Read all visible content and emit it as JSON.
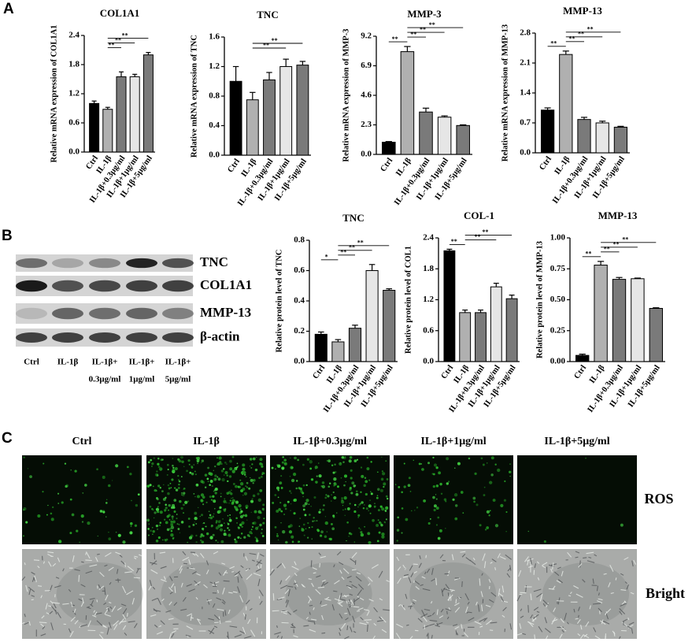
{
  "panels": [
    "A",
    "B",
    "C"
  ],
  "chart_data": [
    {
      "type": "bar",
      "title": "COL1A1",
      "ylabel": "Relative mRNA expression of COL1A1",
      "categories": [
        "Ctrl",
        "IL-1β",
        "IL-1β+0.3μg/ml",
        "IL-1β+1μg/ml",
        "IL-1β+5μg/ml"
      ],
      "values": [
        1.0,
        0.88,
        1.55,
        1.55,
        2.0
      ],
      "errors": [
        0.05,
        0.04,
        0.1,
        0.05,
        0.05
      ],
      "colors": [
        "#000000",
        "#b0b0b0",
        "#7a7a7a",
        "#e6e6e6",
        "#7a7a7a"
      ],
      "ylim": [
        0,
        2.4
      ],
      "yticks": [
        {
          "value": 0,
          "label": "0.0"
        },
        0.6,
        1.2,
        1.8,
        2.4
      ],
      "significance": [
        {
          "from": 1,
          "to": 2,
          "label": "**"
        },
        {
          "from": 1,
          "to": 3,
          "label": "**"
        },
        {
          "from": 1,
          "to": 4,
          "label": "**"
        }
      ]
    },
    {
      "type": "bar",
      "title": "TNC",
      "ylabel": "Relative mRNA expression of  TNC",
      "categories": [
        "Ctrl",
        "IL-1β",
        "IL-1β+0.3μg/ml",
        "IL-1β+1μg/ml",
        "IL-1β+5μg/ml"
      ],
      "values": [
        1.0,
        0.75,
        1.02,
        1.2,
        1.22
      ],
      "errors": [
        0.2,
        0.1,
        0.1,
        0.1,
        0.05
      ],
      "colors": [
        "#000000",
        "#b0b0b0",
        "#7a7a7a",
        "#e6e6e6",
        "#7a7a7a"
      ],
      "ylim": [
        0,
        1.6
      ],
      "yticks": [
        {
          "value": 0,
          "label": "0.0"
        },
        0.4,
        0.8,
        1.2,
        1.6
      ],
      "significance": [
        {
          "from": 1,
          "to": 3,
          "label": "**"
        },
        {
          "from": 1,
          "to": 4,
          "label": "**"
        }
      ]
    },
    {
      "type": "bar",
      "title": "MMP-3",
      "ylabel": "Relative mRNA expression of  MMP-3",
      "categories": [
        "Ctrl",
        "IL-1β",
        "IL-1β+0.3μg/ml",
        "IL-1β+1μg/ml",
        "IL-1β+5μg/ml"
      ],
      "values": [
        0.95,
        8.0,
        3.3,
        2.9,
        2.25
      ],
      "errors": [
        0.05,
        0.4,
        0.3,
        0.1,
        0.05
      ],
      "colors": [
        "#000000",
        "#b0b0b0",
        "#7a7a7a",
        "#e6e6e6",
        "#7a7a7a"
      ],
      "ylim": [
        0,
        9.2
      ],
      "yticks": [
        {
          "value": 0,
          "label": "0.0"
        },
        2.3,
        4.6,
        6.9,
        9.2
      ],
      "significance": [
        {
          "from": 0,
          "to": 1,
          "label": "**"
        },
        {
          "from": 1,
          "to": 2,
          "label": "**"
        },
        {
          "from": 1,
          "to": 3,
          "label": "**"
        },
        {
          "from": 1,
          "to": 4,
          "label": "**"
        }
      ]
    },
    {
      "type": "bar",
      "title": "MMP-13",
      "ylabel": "Relative mRNA expression of  MMP-13",
      "categories": [
        "Ctrl",
        "IL-1β",
        "IL-1β+0.3μg/ml",
        "IL-1β+1μg/ml",
        "IL-1β+5μg/ml"
      ],
      "values": [
        1.0,
        2.3,
        0.78,
        0.7,
        0.6
      ],
      "errors": [
        0.05,
        0.08,
        0.05,
        0.04,
        0.02
      ],
      "colors": [
        "#000000",
        "#b0b0b0",
        "#7a7a7a",
        "#e6e6e6",
        "#7a7a7a"
      ],
      "ylim": [
        0,
        2.8
      ],
      "yticks": [
        {
          "value": 0,
          "label": "0.0"
        },
        0.7,
        1.4,
        2.1,
        2.8
      ],
      "significance": [
        {
          "from": 0,
          "to": 1,
          "label": "**"
        },
        {
          "from": 1,
          "to": 2,
          "label": "**"
        },
        {
          "from": 1,
          "to": 3,
          "label": "**"
        },
        {
          "from": 1,
          "to": 4,
          "label": "**"
        }
      ]
    },
    {
      "type": "bar",
      "title": "TNC",
      "ylabel": "Relative protein level of TNC",
      "categories": [
        "Ctrl",
        "IL-1β",
        "IL-1β+0.3μg/ml",
        "IL-1β+1μg/ml",
        "IL-1β+5μg/ml"
      ],
      "values": [
        0.18,
        0.13,
        0.22,
        0.6,
        0.47
      ],
      "errors": [
        0.015,
        0.015,
        0.02,
        0.04,
        0.01
      ],
      "colors": [
        "#000000",
        "#b0b0b0",
        "#7a7a7a",
        "#e6e6e6",
        "#7a7a7a"
      ],
      "ylim": [
        0,
        0.8
      ],
      "yticks": [
        {
          "value": 0,
          "label": "0.0"
        },
        0.2,
        0.4,
        0.6,
        0.8
      ],
      "significance": [
        {
          "from": 0,
          "to": 1,
          "label": "*"
        },
        {
          "from": 1,
          "to": 2,
          "label": "**"
        },
        {
          "from": 1,
          "to": 3,
          "label": "**"
        },
        {
          "from": 1,
          "to": 4,
          "label": "**"
        }
      ]
    },
    {
      "type": "bar",
      "title": "COL-1",
      "ylabel": "Relative protein level of COL1",
      "categories": [
        "Ctrl",
        "IL-1β",
        "IL-1β+0.3μg/ml",
        "IL-1β+1μg/ml",
        "IL-1β+5μg/ml"
      ],
      "values": [
        2.15,
        0.95,
        0.95,
        1.45,
        1.22
      ],
      "errors": [
        0.03,
        0.05,
        0.05,
        0.07,
        0.07
      ],
      "colors": [
        "#000000",
        "#b0b0b0",
        "#7a7a7a",
        "#e6e6e6",
        "#7a7a7a"
      ],
      "ylim": [
        0,
        2.4
      ],
      "yticks": [
        {
          "value": 0,
          "label": "0.0"
        },
        0.6,
        1.2,
        1.8,
        2.4
      ],
      "significance": [
        {
          "from": 0,
          "to": 1,
          "label": "**"
        },
        {
          "from": 1,
          "to": 3,
          "label": "**"
        },
        {
          "from": 1,
          "to": 4,
          "label": "**"
        }
      ]
    },
    {
      "type": "bar",
      "title": "MMP-13",
      "ylabel": "Relative protein level of MMP-13",
      "categories": [
        "Ctrl",
        "IL-1β",
        "IL-1β+0.3μg/ml",
        "IL-1β+1μg/ml",
        "IL-1β+5μg/ml"
      ],
      "values": [
        0.05,
        0.78,
        0.665,
        0.67,
        0.43
      ],
      "errors": [
        0.01,
        0.03,
        0.015,
        0.005,
        0.005
      ],
      "colors": [
        "#000000",
        "#b0b0b0",
        "#7a7a7a",
        "#e6e6e6",
        "#7a7a7a"
      ],
      "ylim": [
        0,
        1.0
      ],
      "yticks": [
        {
          "value": 0,
          "label": "0.00"
        },
        {
          "value": 0.25,
          "label": "0.25"
        },
        {
          "value": 0.5,
          "label": "0.50"
        },
        {
          "value": 0.75,
          "label": "0.75"
        },
        {
          "value": 1.0,
          "label": "1.00"
        }
      ],
      "significance": [
        {
          "from": 0,
          "to": 1,
          "label": "**"
        },
        {
          "from": 1,
          "to": 2,
          "label": "**"
        },
        {
          "from": 1,
          "to": 3,
          "label": "**"
        },
        {
          "from": 1,
          "to": 4,
          "label": "**"
        }
      ]
    }
  ],
  "blot": {
    "rows": [
      "TNC",
      "COL1A1",
      "MMP-13",
      "β-actin"
    ],
    "lanes": [
      [
        "Ctrl"
      ],
      [
        "IL-1β"
      ],
      [
        "IL-1β+",
        "0.3μg/ml"
      ],
      [
        "IL-1β+",
        "1μg/ml"
      ],
      [
        "IL-1β+",
        "5μg/ml"
      ]
    ]
  },
  "imaging": {
    "columns": [
      "Ctrl",
      "IL-1β",
      "IL-1β+0.3μg/ml",
      "IL-1β+1μg/ml",
      "IL-1β+5μg/ml"
    ],
    "rows": [
      "ROS",
      "Bright"
    ]
  }
}
